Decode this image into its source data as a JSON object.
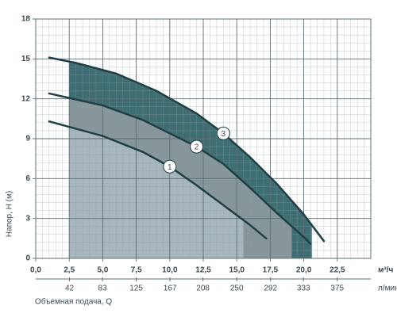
{
  "chart_data": {
    "type": "line",
    "y_label": "Напор, H (м)",
    "x_label": "Объемная подача, Q",
    "x_unit": "м³/ч",
    "x2_unit": "л/мин",
    "xlim": [
      0,
      25
    ],
    "xticks": [
      {
        "value": 0,
        "label": "0,0"
      },
      {
        "value": 2.5,
        "label": "2,5"
      },
      {
        "value": 5,
        "label": "5,0"
      },
      {
        "value": 7.5,
        "label": "7,5"
      },
      {
        "value": 10,
        "label": "10,0"
      },
      {
        "value": 12.5,
        "label": "12,5"
      },
      {
        "value": 15,
        "label": "15,0"
      },
      {
        "value": 17.5,
        "label": "17,5"
      },
      {
        "value": 20,
        "label": "20,0"
      },
      {
        "value": 22.5,
        "label": "22,5"
      }
    ],
    "x2lim": [
      0,
      416.7
    ],
    "x2ticks": [
      42,
      83,
      125,
      167,
      208,
      250,
      292,
      333,
      375
    ],
    "ylim": [
      0,
      18
    ],
    "yticks": [
      0,
      3,
      6,
      9,
      12,
      15,
      18
    ],
    "grid": true,
    "series": [
      {
        "name": "1",
        "color": "#1f3f45",
        "fill": "#a7b6bc",
        "range": [
          2.5,
          15.5
        ],
        "x": [
          1,
          5,
          8,
          10,
          12,
          14,
          16,
          17.2
        ],
        "values": [
          10.3,
          9.2,
          8.0,
          6.9,
          5.5,
          4.0,
          2.5,
          1.5
        ]
      },
      {
        "name": "2",
        "color": "#1f3f45",
        "fill": "#86969a",
        "range": [
          2.5,
          19.1
        ],
        "x": [
          1,
          5,
          8,
          12,
          14,
          16,
          18,
          20,
          20.5
        ],
        "values": [
          12.4,
          11.5,
          10.4,
          8.4,
          7.1,
          5.3,
          3.4,
          1.6,
          1.1
        ]
      },
      {
        "name": "3",
        "color": "#1f3f45",
        "fill": "#3e6d73",
        "range": [
          2.5,
          20.6
        ],
        "x": [
          1,
          3,
          6,
          9,
          12,
          14,
          16,
          18,
          20,
          21.5
        ],
        "values": [
          15.1,
          14.7,
          13.9,
          12.6,
          10.9,
          9.4,
          7.6,
          5.6,
          3.3,
          1.3
        ]
      }
    ]
  }
}
